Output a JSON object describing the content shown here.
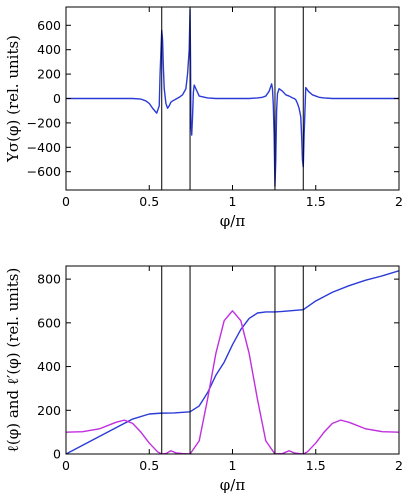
{
  "chart_data": [
    {
      "type": "line",
      "xlabel": "φ/π",
      "ylabel": "Υσ(φ) (rel. units)",
      "xlim": [
        0,
        2
      ],
      "ylim": [
        -750,
        750
      ],
      "xticks": [
        "0",
        "0.5",
        "1",
        "1.5",
        "2"
      ],
      "yticks": [
        "−600",
        "−400",
        "−200",
        "0",
        "200",
        "400",
        "600"
      ],
      "grid": false,
      "vlines": [
        0.575,
        0.745,
        1.255,
        1.425
      ],
      "series": [
        {
          "color": "#2b3bd8",
          "x": [
            0,
            0.3,
            0.4,
            0.45,
            0.48,
            0.5,
            0.52,
            0.545,
            0.56,
            0.565,
            0.575,
            0.58,
            0.585,
            0.59,
            0.6,
            0.61,
            0.62,
            0.63,
            0.64,
            0.66,
            0.68,
            0.7,
            0.72,
            0.73,
            0.735,
            0.74,
            0.745,
            0.748,
            0.75,
            0.755,
            0.76,
            0.765,
            0.77,
            0.78,
            0.8,
            0.85,
            0.9,
            1.0,
            1.1,
            1.15,
            1.18,
            1.2,
            1.22,
            1.235,
            1.24,
            1.245,
            1.25,
            1.255,
            1.26,
            1.265,
            1.27,
            1.28,
            1.3,
            1.32,
            1.34,
            1.36,
            1.37,
            1.38,
            1.39,
            1.4,
            1.41,
            1.415,
            1.42,
            1.425,
            1.43,
            1.44,
            1.455,
            1.48,
            1.5,
            1.52,
            1.55,
            1.6,
            1.7,
            2.0
          ],
          "y": [
            0,
            0,
            0,
            -5,
            -20,
            -40,
            -80,
            -120,
            -60,
            200,
            560,
            480,
            250,
            80,
            -40,
            -80,
            -60,
            -30,
            -20,
            -5,
            10,
            30,
            80,
            200,
            300,
            400,
            730,
            300,
            -200,
            -300,
            -150,
            50,
            110,
            80,
            20,
            5,
            0,
            0,
            0,
            5,
            10,
            20,
            60,
            120,
            80,
            -50,
            -300,
            -720,
            -500,
            -100,
            40,
            80,
            60,
            30,
            20,
            5,
            0,
            -10,
            -40,
            -80,
            -150,
            -300,
            -500,
            -560,
            -300,
            90,
            60,
            30,
            20,
            10,
            5,
            0,
            0,
            0
          ]
        }
      ]
    },
    {
      "type": "line",
      "xlabel": "φ/π",
      "ylabel": "ℓ(φ) and ℓ′(φ) (rel. units)",
      "xlim": [
        0,
        2
      ],
      "ylim": [
        0,
        860
      ],
      "xticks": [
        "0",
        "0.5",
        "1",
        "1.5",
        "2"
      ],
      "yticks": [
        "0",
        "200",
        "400",
        "600",
        "800"
      ],
      "grid": false,
      "vlines": [
        0.575,
        0.745,
        1.255,
        1.425
      ],
      "series": [
        {
          "color": "#2b3bd8",
          "x": [
            0,
            0.1,
            0.2,
            0.3,
            0.4,
            0.5,
            0.575,
            0.65,
            0.745,
            0.8,
            0.85,
            0.9,
            0.95,
            1.0,
            1.05,
            1.1,
            1.15,
            1.2,
            1.255,
            1.3,
            1.425,
            1.5,
            1.6,
            1.7,
            1.8,
            1.9,
            2.0
          ],
          "y": [
            0,
            40,
            80,
            120,
            160,
            183,
            187,
            188,
            193,
            220,
            280,
            360,
            420,
            500,
            570,
            620,
            645,
            650,
            650,
            652,
            660,
            700,
            740,
            770,
            795,
            815,
            838
          ]
        },
        {
          "color": "#c02ee0",
          "x": [
            0,
            0.1,
            0.2,
            0.3,
            0.35,
            0.4,
            0.45,
            0.5,
            0.55,
            0.575,
            0.6,
            0.63,
            0.66,
            0.7,
            0.745,
            0.8,
            0.85,
            0.9,
            0.95,
            1.0,
            1.05,
            1.1,
            1.15,
            1.2,
            1.255,
            1.3,
            1.34,
            1.37,
            1.4,
            1.425,
            1.45,
            1.5,
            1.55,
            1.6,
            1.65,
            1.7,
            1.8,
            1.9,
            2.0
          ],
          "y": [
            100,
            102,
            115,
            145,
            155,
            140,
            100,
            50,
            10,
            0,
            2,
            15,
            5,
            2,
            0,
            60,
            250,
            460,
            610,
            655,
            610,
            460,
            250,
            60,
            0,
            2,
            15,
            5,
            2,
            0,
            10,
            50,
            100,
            140,
            155,
            145,
            115,
            102,
            100
          ]
        }
      ]
    }
  ]
}
